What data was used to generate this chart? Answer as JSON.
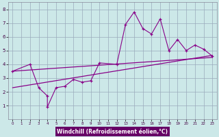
{
  "xlabel": "Windchill (Refroidissement éolien,°C)",
  "bg_color": "#cce8e8",
  "line_color": "#880088",
  "grid_color": "#99aabb",
  "label_bg": "#660066",
  "label_fg": "#ffffff",
  "x_data": [
    0,
    2,
    3,
    4,
    4,
    5,
    6,
    7,
    8,
    9,
    10,
    12,
    13,
    14,
    15,
    16,
    17,
    18,
    19,
    20,
    21,
    22,
    23
  ],
  "y_data": [
    3.5,
    4.0,
    2.3,
    1.7,
    0.9,
    2.3,
    2.4,
    2.9,
    2.7,
    2.8,
    4.1,
    4.0,
    6.9,
    7.8,
    6.6,
    6.2,
    7.3,
    5.0,
    5.8,
    5.0,
    5.4,
    5.1,
    4.6
  ],
  "reg1_start": 3.5,
  "reg1_end": 4.5,
  "reg2_start": 2.3,
  "reg2_end": 4.65,
  "xlim": [
    -0.5,
    23.5
  ],
  "ylim": [
    0,
    8.5
  ],
  "xticks": [
    0,
    1,
    2,
    3,
    4,
    5,
    6,
    7,
    8,
    9,
    10,
    11,
    12,
    13,
    14,
    15,
    16,
    17,
    18,
    19,
    20,
    21,
    22,
    23
  ],
  "yticks": [
    1,
    2,
    3,
    4,
    5,
    6,
    7,
    8
  ]
}
